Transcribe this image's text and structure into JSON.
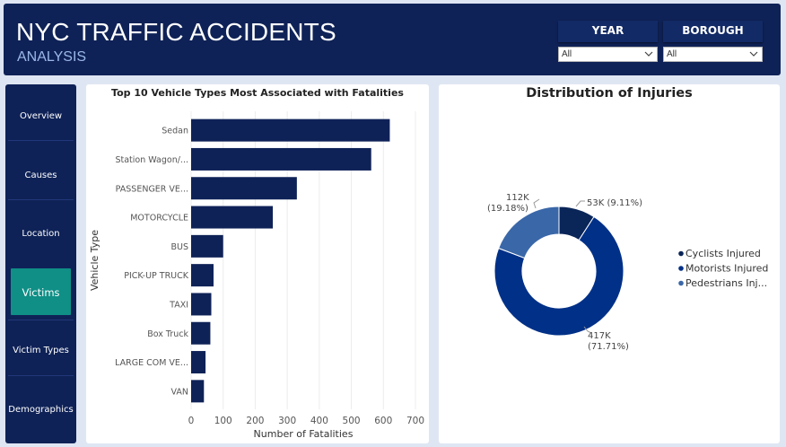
{
  "header": {
    "title": "NYC TRAFFIC ACCIDENTS",
    "subtitle": "ANALYSIS"
  },
  "filters": {
    "year": {
      "label": "YEAR",
      "value": "All"
    },
    "borough": {
      "label": "BOROUGH",
      "value": "All"
    }
  },
  "sidebar": {
    "items": [
      {
        "label": "Overview",
        "active": false
      },
      {
        "label": "Causes",
        "active": false
      },
      {
        "label": "Location",
        "active": false
      },
      {
        "label": "Victims",
        "active": true
      },
      {
        "label": "Victim Types",
        "active": false
      },
      {
        "label": "Demographics",
        "active": false
      }
    ]
  },
  "colors": {
    "header_bg": "#0f2257",
    "accent_active": "#0f8f86",
    "bar": "#0f2257",
    "cyclists": "#0a2558",
    "motorists": "#003087",
    "pedestrians": "#3a67a8"
  },
  "chart_data": [
    {
      "type": "bar",
      "orientation": "horizontal",
      "title": "Top 10 Vehicle Types Most Associated with Fatalities",
      "xlabel": "Number of Fatalities",
      "ylabel": "Vehicle Type",
      "categories": [
        "Sedan",
        "Station Wagon/...",
        "PASSENGER VE...",
        "MOTORCYCLE",
        "BUS",
        "PICK-UP TRUCK",
        "TAXI",
        "Box Truck",
        "LARGE COM VE...",
        "VAN"
      ],
      "values": [
        620,
        562,
        330,
        255,
        100,
        70,
        63,
        60,
        45,
        40
      ],
      "xlim": [
        0,
        700
      ],
      "xticks": [
        0,
        100,
        200,
        300,
        400,
        500,
        600,
        700
      ],
      "grid": true
    },
    {
      "type": "pie",
      "subtype": "donut",
      "title": "Distribution of Injuries",
      "categories": [
        "Cyclists Injured",
        "Motorists Injured",
        "Pedestrians Inj..."
      ],
      "values": [
        53,
        417,
        112
      ],
      "percent": [
        9.11,
        71.71,
        19.18
      ],
      "value_labels": [
        "53K",
        "417K",
        "112K"
      ],
      "percent_labels": [
        "(9.11%)",
        "(71.71%)",
        "(19.18%)"
      ],
      "legend_position": "right"
    }
  ]
}
